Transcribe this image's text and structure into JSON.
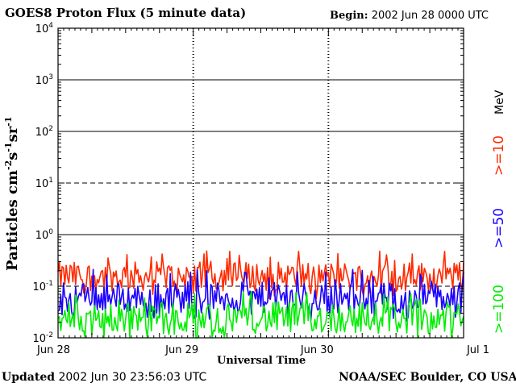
{
  "chart_data": {
    "type": "line",
    "title": "GOES8 Proton Flux (5 minute data)",
    "begin_label": "Begin:",
    "begin_value": "2002 Jun 28 0000 UTC",
    "ylabel_main": "Particles cm",
    "ylabel_exp1": "-2",
    "ylabel_mid1": "s",
    "ylabel_exp2": "-1",
    "ylabel_mid2": "sr",
    "ylabel_exp3": "-1",
    "xlabel": "Universal Time",
    "y_scale": "log",
    "ylim": [
      0.01,
      10000
    ],
    "xlim": [
      "2002-06-28 00:00",
      "2002-07-01 00:00"
    ],
    "y_ticks": [
      {
        "base": "10",
        "exp": "-2",
        "value": 0.01
      },
      {
        "base": "10",
        "exp": "-1",
        "value": 0.1
      },
      {
        "base": "10",
        "exp": "0",
        "value": 1
      },
      {
        "base": "10",
        "exp": "1",
        "value": 10
      },
      {
        "base": "10",
        "exp": "2",
        "value": 100
      },
      {
        "base": "10",
        "exp": "3",
        "value": 1000
      },
      {
        "base": "10",
        "exp": "4",
        "value": 10000
      }
    ],
    "x_ticks": [
      "Jun 28",
      "Jun 29",
      "Jun 30",
      "Jul 1"
    ],
    "legend_unit": "MeV",
    "grid": true,
    "series": [
      {
        "name": ">=10",
        "color": "#ff2a00",
        "typical_range": [
          0.08,
          0.3
        ],
        "peak": 0.5
      },
      {
        "name": ">=50",
        "color": "#1a00ff",
        "typical_range": [
          0.03,
          0.12
        ],
        "peak": 0.22
      },
      {
        "name": ">=100",
        "color": "#00ee00",
        "typical_range": [
          0.012,
          0.05
        ],
        "peak": 0.08
      }
    ]
  },
  "footer": {
    "updated_label": "Updated",
    "updated_value": "2002 Jun 30 23:56:03 UTC",
    "source": "NOAA/SEC Boulder, CO USA"
  }
}
